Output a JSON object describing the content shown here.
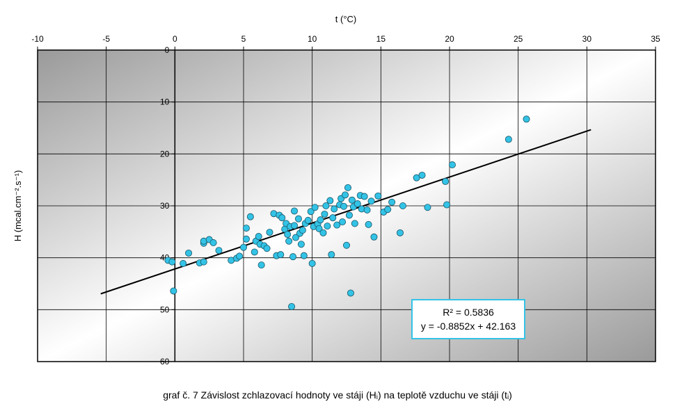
{
  "chart_data": {
    "type": "scatter",
    "xlabel": "t (°C)",
    "ylabel": "H (mcal.cm⁻².s⁻¹)",
    "xlim": [
      -10,
      35
    ],
    "ylim": [
      0,
      60
    ],
    "x_ticks": [
      "-10",
      "-5",
      "0",
      "5",
      "10",
      "15",
      "20",
      "25",
      "30",
      "35"
    ],
    "y_ticks": [
      "0",
      "10",
      "20",
      "30",
      "40",
      "50",
      "60"
    ],
    "grid": true,
    "trendline": {
      "equation": "y = -0.8852x + 42.163",
      "r_squared": "R² = 0.5836",
      "slope": -0.8852,
      "intercept": 42.163,
      "x_range": [
        -5.4,
        30.3
      ]
    },
    "points": [
      {
        "x": -0.5,
        "y": 40.5
      },
      {
        "x": -0.2,
        "y": 40.8
      },
      {
        "x": -0.1,
        "y": 46.4
      },
      {
        "x": 0.6,
        "y": 41.1
      },
      {
        "x": 1.0,
        "y": 39.1
      },
      {
        "x": 1.8,
        "y": 41.0
      },
      {
        "x": 2.1,
        "y": 40.8
      },
      {
        "x": 2.1,
        "y": 37.2
      },
      {
        "x": 2.1,
        "y": 36.8
      },
      {
        "x": 2.5,
        "y": 36.5
      },
      {
        "x": 2.8,
        "y": 37.1
      },
      {
        "x": 3.2,
        "y": 38.6
      },
      {
        "x": 4.1,
        "y": 40.5
      },
      {
        "x": 4.5,
        "y": 40.1
      },
      {
        "x": 4.7,
        "y": 39.7
      },
      {
        "x": 5.0,
        "y": 38.0
      },
      {
        "x": 5.2,
        "y": 36.4
      },
      {
        "x": 5.2,
        "y": 34.3
      },
      {
        "x": 5.5,
        "y": 32.1
      },
      {
        "x": 5.8,
        "y": 38.9
      },
      {
        "x": 5.9,
        "y": 36.8
      },
      {
        "x": 6.1,
        "y": 35.9
      },
      {
        "x": 6.2,
        "y": 37.4
      },
      {
        "x": 6.3,
        "y": 41.4
      },
      {
        "x": 6.5,
        "y": 37.7
      },
      {
        "x": 6.7,
        "y": 38.2
      },
      {
        "x": 6.9,
        "y": 35.1
      },
      {
        "x": 7.2,
        "y": 31.5
      },
      {
        "x": 7.4,
        "y": 39.6
      },
      {
        "x": 7.6,
        "y": 31.8
      },
      {
        "x": 7.7,
        "y": 39.4
      },
      {
        "x": 7.8,
        "y": 32.3
      },
      {
        "x": 8.0,
        "y": 34.5
      },
      {
        "x": 8.1,
        "y": 33.4
      },
      {
        "x": 8.2,
        "y": 35.5
      },
      {
        "x": 8.3,
        "y": 36.8
      },
      {
        "x": 8.4,
        "y": 34.0
      },
      {
        "x": 8.5,
        "y": 49.4
      },
      {
        "x": 8.6,
        "y": 39.8
      },
      {
        "x": 8.7,
        "y": 31.0
      },
      {
        "x": 8.7,
        "y": 33.8
      },
      {
        "x": 8.8,
        "y": 36.1
      },
      {
        "x": 9.0,
        "y": 32.5
      },
      {
        "x": 9.1,
        "y": 35.3
      },
      {
        "x": 9.2,
        "y": 37.4
      },
      {
        "x": 9.3,
        "y": 34.7
      },
      {
        "x": 9.4,
        "y": 39.6
      },
      {
        "x": 9.5,
        "y": 33.4
      },
      {
        "x": 9.7,
        "y": 32.8
      },
      {
        "x": 9.9,
        "y": 31.1
      },
      {
        "x": 10.0,
        "y": 41.1
      },
      {
        "x": 10.1,
        "y": 34.0
      },
      {
        "x": 10.2,
        "y": 30.3
      },
      {
        "x": 10.4,
        "y": 33.5
      },
      {
        "x": 10.5,
        "y": 34.4
      },
      {
        "x": 10.6,
        "y": 32.7
      },
      {
        "x": 10.8,
        "y": 35.2
      },
      {
        "x": 10.9,
        "y": 31.6
      },
      {
        "x": 11.0,
        "y": 30.0
      },
      {
        "x": 11.1,
        "y": 33.9
      },
      {
        "x": 11.3,
        "y": 29.0
      },
      {
        "x": 11.4,
        "y": 39.4
      },
      {
        "x": 11.5,
        "y": 32.3
      },
      {
        "x": 11.6,
        "y": 30.6
      },
      {
        "x": 11.8,
        "y": 33.7
      },
      {
        "x": 12.0,
        "y": 29.8
      },
      {
        "x": 12.1,
        "y": 28.6
      },
      {
        "x": 12.2,
        "y": 33.1
      },
      {
        "x": 12.3,
        "y": 30.1
      },
      {
        "x": 12.4,
        "y": 27.9
      },
      {
        "x": 12.5,
        "y": 37.6
      },
      {
        "x": 12.6,
        "y": 26.5
      },
      {
        "x": 12.7,
        "y": 31.8
      },
      {
        "x": 12.8,
        "y": 46.8
      },
      {
        "x": 12.9,
        "y": 28.9
      },
      {
        "x": 13.0,
        "y": 30.2
      },
      {
        "x": 13.1,
        "y": 33.4
      },
      {
        "x": 13.3,
        "y": 29.6
      },
      {
        "x": 13.5,
        "y": 28.0
      },
      {
        "x": 13.6,
        "y": 30.6
      },
      {
        "x": 13.8,
        "y": 28.2
      },
      {
        "x": 14.0,
        "y": 30.8
      },
      {
        "x": 14.1,
        "y": 33.6
      },
      {
        "x": 14.3,
        "y": 29.1
      },
      {
        "x": 14.5,
        "y": 36.0
      },
      {
        "x": 14.8,
        "y": 28.1
      },
      {
        "x": 15.2,
        "y": 31.2
      },
      {
        "x": 15.5,
        "y": 30.7
      },
      {
        "x": 15.8,
        "y": 29.3
      },
      {
        "x": 16.4,
        "y": 35.2
      },
      {
        "x": 16.6,
        "y": 30.0
      },
      {
        "x": 17.6,
        "y": 24.6
      },
      {
        "x": 18.0,
        "y": 24.1
      },
      {
        "x": 18.4,
        "y": 30.3
      },
      {
        "x": 19.7,
        "y": 25.3
      },
      {
        "x": 20.2,
        "y": 22.1
      },
      {
        "x": 24.3,
        "y": 17.2
      },
      {
        "x": 25.6,
        "y": 13.3
      },
      {
        "x": 19.8,
        "y": 29.8
      }
    ]
  },
  "caption": "graf č. 7 Závislost zchlazovací hodnoty ve stáji (Hᵢ) na teplotě vzduchu ve stáji (tᵢ)",
  "colors": {
    "marker_fill": "#33c3e6",
    "marker_stroke": "#1a5566",
    "box_border": "#33c3e6",
    "trend_line": "#000000",
    "grid": "#000000"
  }
}
